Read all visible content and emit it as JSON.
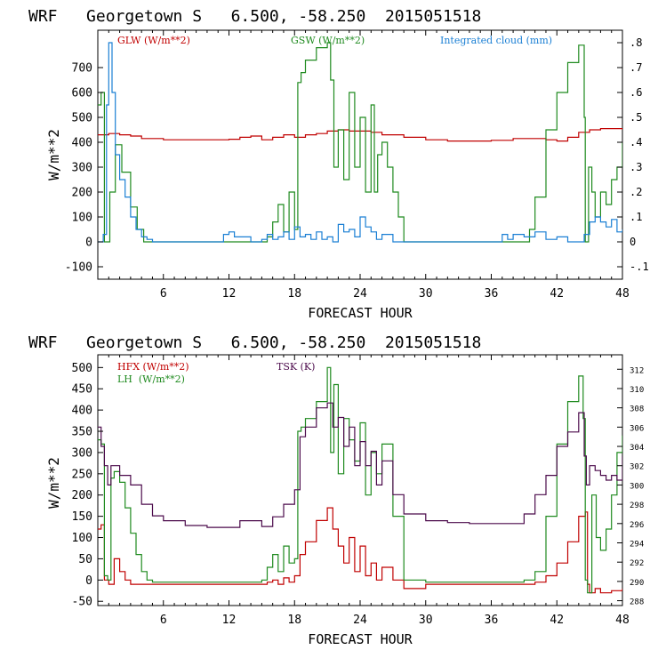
{
  "chart_data": [
    {
      "type": "line",
      "header": {
        "model": "WRF",
        "station": "Georgetown S",
        "coords": "6.500, -58.250",
        "init": "2015051518"
      },
      "title": "WRF   Georgetown S   6.500, -58.250  2015051518",
      "xlabel": "FORECAST HOUR",
      "ylabel": "W/m**2",
      "xlim": [
        0,
        48
      ],
      "ylim": [
        -150,
        850
      ],
      "y2lim": [
        -0.15,
        0.85
      ],
      "x_ticks": [
        6,
        12,
        18,
        24,
        30,
        36,
        42,
        48
      ],
      "y_ticks": [
        -100,
        0,
        100,
        200,
        300,
        400,
        500,
        600,
        700
      ],
      "y2_ticks": [
        -0.1,
        0,
        0.1,
        0.2,
        0.3,
        0.4,
        0.5,
        0.6,
        0.7,
        0.8
      ],
      "y2_tick_labels": [
        "-.1",
        "0",
        ".1",
        ".2",
        ".3",
        ".4",
        ".5",
        ".6",
        ".7",
        ".8"
      ],
      "legend": [
        {
          "label": "GLW (W/m**2)",
          "color": "#c00000"
        },
        {
          "label": "GSW (W/m**2)",
          "color": "#1f8a1f"
        },
        {
          "label": "Integrated cloud (mm)",
          "color": "#1a7fd4"
        }
      ],
      "series": [
        {
          "name": "GLW",
          "axis": "left",
          "color": "#c00000",
          "x": [
            0,
            1,
            2,
            3,
            4,
            6,
            8,
            10,
            12,
            13,
            14,
            15,
            16,
            17,
            18,
            19,
            20,
            21,
            22,
            23,
            24,
            25,
            26,
            28,
            30,
            32,
            34,
            36,
            38,
            40,
            41,
            42,
            43,
            44,
            45,
            46,
            47,
            48
          ],
          "values": [
            430,
            435,
            430,
            425,
            415,
            410,
            410,
            410,
            412,
            420,
            425,
            410,
            420,
            430,
            420,
            430,
            435,
            445,
            450,
            445,
            445,
            440,
            430,
            420,
            410,
            405,
            405,
            408,
            415,
            415,
            410,
            405,
            420,
            440,
            450,
            455,
            455,
            450
          ]
        },
        {
          "name": "GSW",
          "axis": "left",
          "color": "#1f8a1f",
          "x": [
            0,
            0.3,
            0.6,
            0.9,
            1.1,
            1.6,
            2.2,
            3,
            3.6,
            4.2,
            5,
            6,
            8,
            10,
            12,
            14,
            15,
            15.5,
            16,
            16.5,
            17,
            17.5,
            18,
            18.3,
            18.6,
            19,
            20,
            21,
            21.3,
            21.6,
            22,
            22.5,
            23,
            23.5,
            24,
            24.5,
            25,
            25.3,
            25.6,
            26,
            26.5,
            27,
            27.5,
            28,
            29,
            30,
            32,
            34,
            36,
            38,
            39,
            39.5,
            40,
            41,
            42,
            43,
            44,
            44.5,
            44.6,
            44.9,
            45.2,
            45.5,
            46,
            46.5,
            47,
            47.5,
            48
          ],
          "values": [
            550,
            600,
            0,
            0,
            200,
            390,
            280,
            140,
            50,
            0,
            0,
            0,
            0,
            0,
            0,
            0,
            0,
            20,
            80,
            150,
            40,
            200,
            50,
            640,
            680,
            730,
            780,
            800,
            650,
            300,
            450,
            250,
            600,
            300,
            500,
            200,
            550,
            200,
            350,
            400,
            300,
            200,
            100,
            0,
            0,
            0,
            0,
            0,
            0,
            0,
            0,
            50,
            180,
            450,
            600,
            720,
            790,
            500,
            0,
            300,
            200,
            100,
            200,
            150,
            250,
            300,
            400
          ]
        },
        {
          "name": "Integrated cloud",
          "axis": "right",
          "color": "#1a7fd4",
          "x": [
            0,
            0.5,
            0.8,
            1.0,
            1.3,
            1.6,
            2.0,
            2.5,
            3,
            3.5,
            4,
            4.5,
            5,
            6,
            8,
            10,
            11.5,
            12,
            12.5,
            14,
            15,
            15.5,
            16,
            16.5,
            17,
            17.5,
            18,
            18.5,
            19,
            19.5,
            20,
            20.5,
            21,
            21.5,
            22,
            22.5,
            23,
            23.5,
            24,
            24.5,
            25,
            25.5,
            26,
            27,
            28,
            30,
            32,
            34,
            36,
            37,
            37.5,
            38,
            39,
            40,
            41,
            42,
            43,
            44,
            44.5,
            45,
            45.5,
            46,
            46.5,
            47,
            47.5,
            48
          ],
          "values": [
            0,
            0.03,
            0.55,
            0.8,
            0.6,
            0.35,
            0.25,
            0.18,
            0.1,
            0.05,
            0.02,
            0.01,
            0,
            0,
            0,
            0,
            0.03,
            0.04,
            0.02,
            0,
            0.01,
            0.03,
            0.01,
            0.02,
            0.04,
            0.01,
            0.06,
            0.02,
            0.03,
            0.01,
            0.04,
            0.01,
            0.02,
            0,
            0.07,
            0.04,
            0.05,
            0.02,
            0.1,
            0.06,
            0.04,
            0.01,
            0.03,
            0,
            0,
            0,
            0,
            0,
            0,
            0.03,
            0.01,
            0.03,
            0.02,
            0.04,
            0.01,
            0.02,
            0,
            0,
            0.03,
            0.08,
            0.1,
            0.08,
            0.06,
            0.09,
            0.04,
            0.05
          ]
        }
      ]
    },
    {
      "type": "line",
      "header": {
        "model": "WRF",
        "station": "Georgetown S",
        "coords": "6.500, -58.250",
        "init": "2015051518"
      },
      "title": "WRF   Georgetown S   6.500, -58.250  2015051518",
      "xlabel": "FORECAST HOUR",
      "ylabel": "W/m**2",
      "xlim": [
        0,
        48
      ],
      "ylim": [
        -60,
        530
      ],
      "y2lim": [
        287.5,
        313.5
      ],
      "x_ticks": [
        6,
        12,
        18,
        24,
        30,
        36,
        42,
        48
      ],
      "y_ticks": [
        -50,
        0,
        50,
        100,
        150,
        200,
        250,
        300,
        350,
        400,
        450,
        500
      ],
      "y2_ticks": [
        288,
        290,
        292,
        294,
        296,
        298,
        300,
        302,
        304,
        306,
        308,
        310,
        312
      ],
      "legend": [
        {
          "label": "HFX (W/m**2)",
          "color": "#c00000"
        },
        {
          "label": "LH  (W/m**2)",
          "color": "#1f8a1f"
        },
        {
          "label": "TSK (K)",
          "color": "#4b0a4b"
        }
      ],
      "series": [
        {
          "name": "HFX",
          "axis": "left",
          "color": "#c00000",
          "x": [
            0,
            0.3,
            0.6,
            1.0,
            1.5,
            2,
            2.5,
            3,
            3.5,
            4,
            5,
            6,
            8,
            10,
            12,
            14,
            15,
            15.5,
            16,
            16.5,
            17,
            17.5,
            18,
            18.5,
            19,
            20,
            21,
            21.5,
            22,
            22.5,
            23,
            23.5,
            24,
            24.5,
            25,
            25.5,
            26,
            27,
            28,
            30,
            32,
            34,
            36,
            38,
            40,
            41,
            42,
            43,
            44,
            44.6,
            44.8,
            45,
            45.5,
            46,
            47,
            48
          ],
          "values": [
            120,
            130,
            0,
            -10,
            50,
            20,
            0,
            -10,
            -10,
            -10,
            -10,
            -10,
            -10,
            -10,
            -10,
            -10,
            -10,
            -5,
            0,
            -10,
            5,
            -5,
            10,
            60,
            90,
            140,
            170,
            120,
            80,
            40,
            100,
            20,
            80,
            10,
            40,
            0,
            30,
            0,
            -20,
            -10,
            -10,
            -10,
            -10,
            -10,
            -5,
            10,
            40,
            90,
            150,
            160,
            -10,
            -30,
            -20,
            -30,
            -25,
            -20
          ]
        },
        {
          "name": "LH",
          "axis": "left",
          "color": "#1f8a1f",
          "x": [
            0,
            0.3,
            0.6,
            0.9,
            1.2,
            1.5,
            2,
            2.5,
            3,
            3.5,
            4,
            4.5,
            5,
            6,
            8,
            10,
            12,
            14,
            15,
            15.5,
            16,
            16.5,
            17,
            17.5,
            18,
            18.3,
            18.6,
            19,
            20,
            21,
            21.3,
            21.6,
            22,
            22.5,
            23,
            23.5,
            24,
            24.5,
            25,
            25.5,
            26,
            27,
            28,
            30,
            32,
            34,
            36,
            38,
            39,
            40,
            41,
            42,
            43,
            44,
            44.4,
            44.6,
            44.8,
            45.2,
            45.6,
            46,
            46.5,
            47,
            47.5,
            48
          ],
          "values": [
            330,
            320,
            10,
            0,
            240,
            255,
            230,
            170,
            110,
            60,
            20,
            0,
            -5,
            -5,
            -5,
            -5,
            -5,
            -5,
            0,
            30,
            60,
            20,
            80,
            40,
            50,
            350,
            360,
            380,
            420,
            500,
            300,
            460,
            250,
            380,
            330,
            280,
            370,
            200,
            300,
            250,
            320,
            150,
            0,
            -5,
            -5,
            -5,
            -5,
            -5,
            0,
            20,
            150,
            320,
            420,
            480,
            380,
            0,
            -30,
            200,
            100,
            70,
            120,
            200,
            300,
            340
          ]
        },
        {
          "name": "TSK",
          "axis": "right",
          "color": "#4b0a4b",
          "x": [
            0,
            0.3,
            0.6,
            0.9,
            1.2,
            2,
            3,
            4,
            5,
            6,
            8,
            10,
            12,
            13,
            14,
            15,
            16,
            17,
            18,
            18.5,
            19,
            20,
            21,
            21.5,
            22,
            22.5,
            23,
            23.5,
            24,
            24.5,
            25,
            25.5,
            26,
            27,
            28,
            30,
            32,
            34,
            36,
            38,
            39,
            40,
            41,
            42,
            43,
            44,
            44.5,
            44.7,
            45,
            45.5,
            46,
            46.5,
            47,
            47.5,
            48
          ],
          "values": [
            306,
            304,
            302,
            300,
            302,
            301,
            300,
            298,
            296.8,
            296.3,
            295.8,
            295.6,
            295.6,
            296.3,
            296.3,
            295.7,
            296.7,
            298,
            299.5,
            305,
            306,
            308,
            308.5,
            306,
            307,
            304,
            306,
            302,
            304.5,
            302,
            303.5,
            300,
            302.5,
            299,
            297,
            296.3,
            296.1,
            296.0,
            296.0,
            296.0,
            297,
            299,
            301,
            304,
            305.5,
            307.5,
            303,
            300,
            302,
            301.5,
            301,
            300.5,
            301,
            300.5,
            303
          ]
        }
      ]
    }
  ]
}
